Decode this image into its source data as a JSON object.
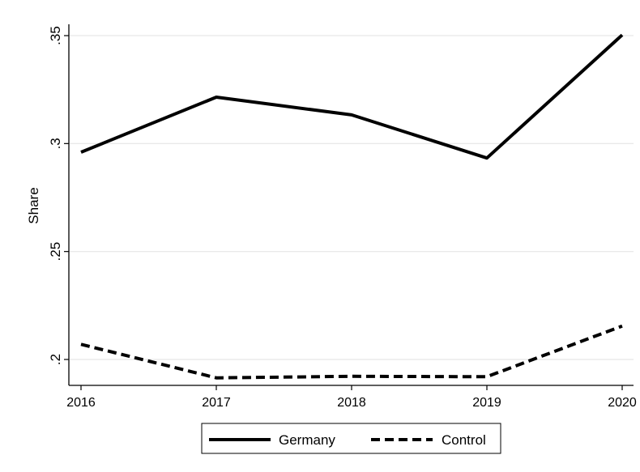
{
  "chart_data": {
    "type": "line",
    "title": "",
    "xlabel": "",
    "ylabel": "Share",
    "x": [
      2016,
      2017,
      2018,
      2019,
      2020
    ],
    "x_tick_labels": [
      "2016",
      "2017",
      "2018",
      "2019",
      "2020"
    ],
    "xlim": [
      2016,
      2020
    ],
    "ylim": [
      0.188,
      0.35
    ],
    "y_ticks": [
      0.2,
      0.25,
      0.3,
      0.35
    ],
    "y_tick_labels": [
      ".2",
      ".25",
      ".3",
      ".35"
    ],
    "grid": true,
    "legend_position": "bottom",
    "series": [
      {
        "name": "Germany",
        "values": [
          0.296,
          0.3215,
          0.3133,
          0.2933,
          0.3503
        ],
        "style": "solid",
        "color": "#000000"
      },
      {
        "name": "Control",
        "values": [
          0.207,
          0.1915,
          0.1922,
          0.192,
          0.2155
        ],
        "style": "dashed",
        "color": "#000000"
      }
    ]
  }
}
